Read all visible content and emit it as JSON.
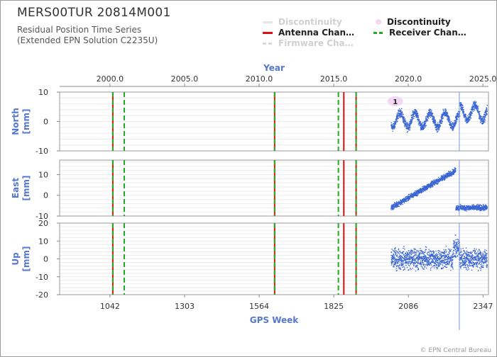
{
  "header": {
    "title": "MERS00TUR 20814M001",
    "subtitle_line1": "Residual Position Time Series",
    "subtitle_line2": "(Extended EPN Solution C2235U)"
  },
  "legend": {
    "discontinuity_line": "Discontinuity",
    "antenna_change": "Antenna Chan…",
    "firmware_change": "Firmware Cha…",
    "discontinuity_marker": "Discontinuity",
    "receiver_change": "Receiver Chan…"
  },
  "footer": {
    "credit": "© EPN Central Bureau"
  },
  "colors": {
    "data": "#3a66d4",
    "antenna": "#dd1111",
    "receiver": "#22aa22",
    "axis_label": "#5577cc",
    "marker_fill": "#f2d8f2"
  },
  "chart_data": {
    "type": "scatter",
    "top_axis": {
      "label": "Year",
      "ticks": [
        "2000.0",
        "2005.0",
        "2010.0",
        "2015.0",
        "2020.0",
        "2025.0"
      ],
      "tick_values": [
        2000,
        2005,
        2010,
        2015,
        2020,
        2025
      ]
    },
    "x_axis": {
      "label": "GPS Week",
      "ticks": [
        "1042",
        "1303",
        "1564",
        "1825",
        "2086",
        "2347"
      ],
      "tick_values": [
        1042,
        1303,
        1564,
        1825,
        2086,
        2347
      ],
      "range": [
        866,
        2366
      ]
    },
    "panels": [
      {
        "name": "North",
        "label_line1": "North",
        "label_line2": "[mm]",
        "ylim": [
          -10,
          10
        ],
        "ticks": [
          "10",
          "0",
          "-10"
        ],
        "tick_values": [
          10,
          0,
          -10
        ]
      },
      {
        "name": "East",
        "label_line1": "East",
        "label_line2": "[mm]",
        "ylim": [
          -10,
          17
        ],
        "ticks": [
          "10",
          "0",
          "-10"
        ],
        "tick_values": [
          10,
          0,
          -10
        ]
      },
      {
        "name": "Up",
        "label_line1": "Up",
        "label_line2": "[mm]",
        "ylim": [
          -20,
          20
        ],
        "ticks": [
          "20",
          "10",
          "0",
          "-10",
          "-20"
        ],
        "tick_values": [
          20,
          10,
          0,
          -10,
          -20
        ]
      }
    ],
    "events": {
      "antenna_changes": [
        1052,
        1618,
        1860,
        1903
      ],
      "receiver_changes": [
        1052,
        1092,
        1618,
        1841,
        1903
      ],
      "discontinuity_marker": {
        "label": "1",
        "week": 2040
      }
    },
    "data_range_weeks": [
      2024,
      2360
    ],
    "discontinuity_week": 2264,
    "series_notes": {
      "North": "seasonal oscillation ±3 mm, then +2 mm shift after week 2264",
      "East": "linear trend from -6 to +12 mm until week 2250, reset to -6 mm after week 2264",
      "Up": "noise ±8 mm around 0"
    }
  }
}
